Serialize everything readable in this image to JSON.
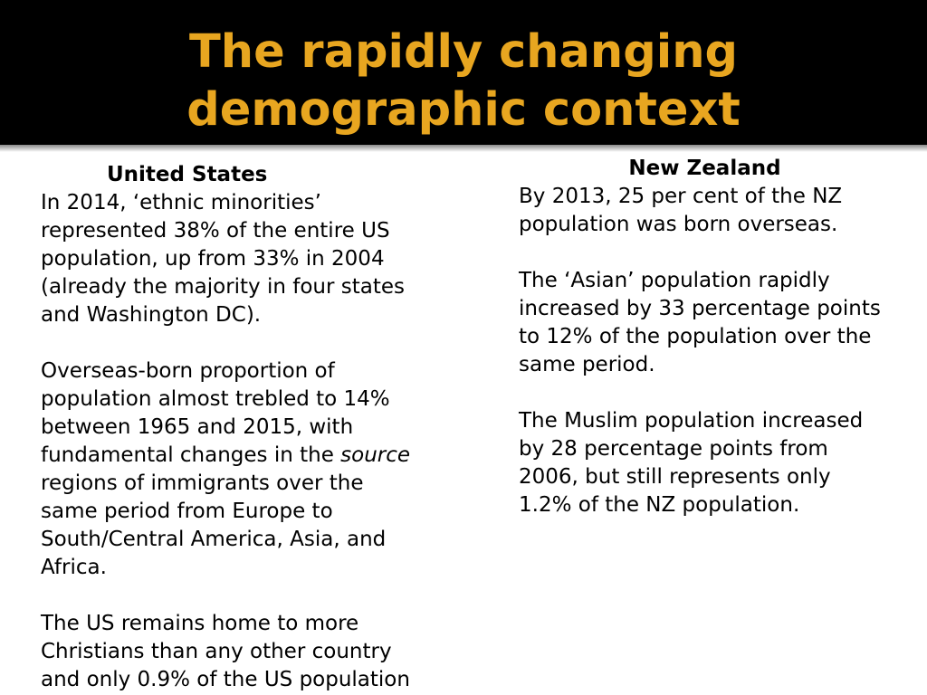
{
  "title": {
    "line1": "The rapidly changing",
    "line2": "demographic context"
  },
  "us": {
    "heading": "United States",
    "para1": [
      "In 2014, ‘ethnic minorities’",
      "represented 38% of the entire US",
      "population, up from 33% in 2004",
      "(already the majority in four states",
      "and Washington DC)."
    ],
    "para2": {
      "line1": "Overseas-born proportion of",
      "line2": "population almost trebled to 14%",
      "line3": "between 1965 and 2015, with",
      "line4_pre": "fundamental changes in the ",
      "line4_em": "source",
      "line5": "regions of immigrants over the",
      "line6": "same period from Europe to",
      "line7": "South/Central America, Asia, and",
      "line8": "Africa."
    },
    "para3": [
      "The US remains home to more",
      "Christians than any other country",
      "and only 0.9% of the US population"
    ]
  },
  "nz": {
    "heading": "New Zealand",
    "para1": [
      "By 2013, 25 per cent of the NZ",
      "population was born overseas."
    ],
    "para2": [
      "The ‘Asian’ population rapidly",
      "increased by 33 percentage points",
      "to 12% of the population over the",
      "same period."
    ],
    "para3": [
      "The Muslim population increased",
      "by 28 percentage points from",
      "2006, but still represents only",
      "1.2% of the NZ population."
    ]
  }
}
